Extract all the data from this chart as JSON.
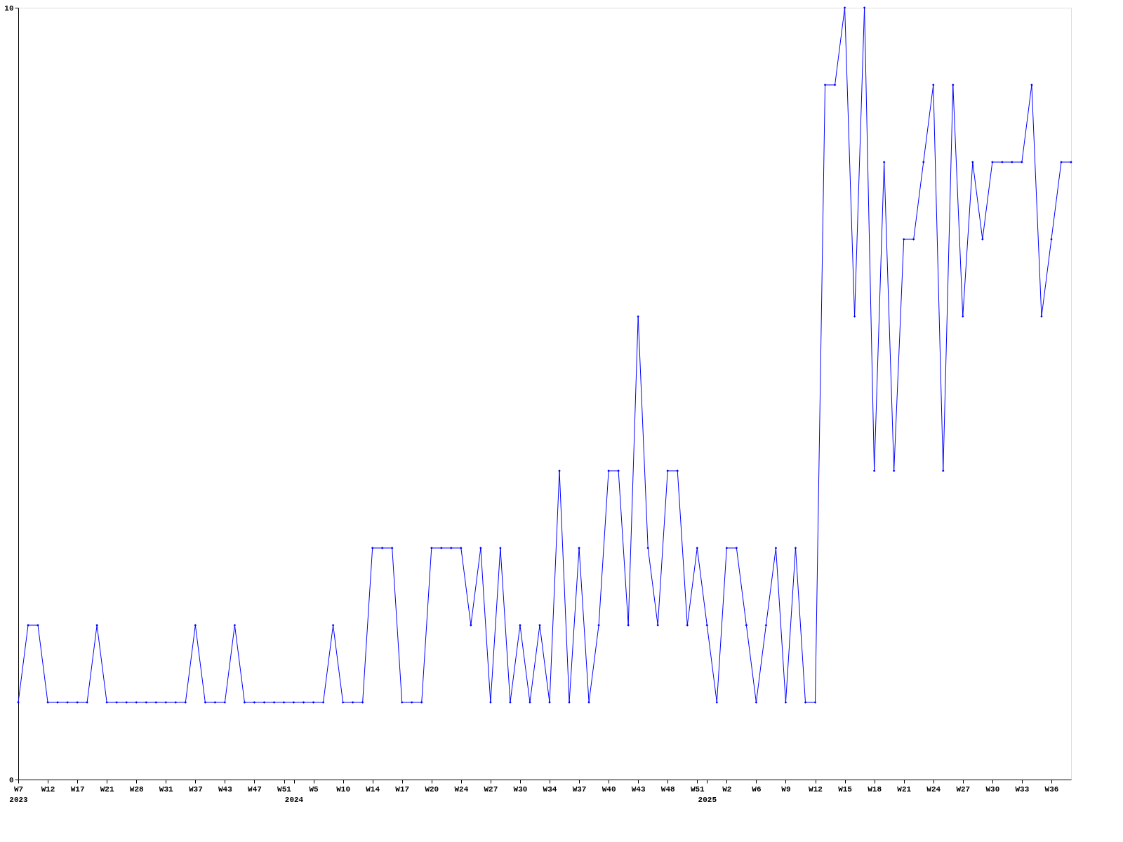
{
  "chart_data": {
    "type": "line",
    "categories": [
      "W7\n2023",
      null,
      null,
      "W12",
      null,
      null,
      "W17",
      null,
      null,
      "W21",
      null,
      null,
      "W28",
      null,
      null,
      "W31",
      null,
      null,
      "W37",
      null,
      null,
      "W43",
      null,
      null,
      "W47",
      null,
      null,
      "W51",
      "\n2024",
      null,
      "W5",
      null,
      null,
      "W10",
      null,
      null,
      "W14",
      null,
      null,
      "W17",
      null,
      null,
      "W20",
      null,
      null,
      "W24",
      null,
      null,
      "W27",
      null,
      null,
      "W30",
      null,
      null,
      "W34",
      null,
      null,
      "W37",
      null,
      null,
      "W40",
      null,
      null,
      "W43",
      null,
      null,
      "W48",
      null,
      null,
      "W51",
      "\n2025",
      null,
      "W2",
      null,
      null,
      "W6",
      null,
      null,
      "W9",
      null,
      null,
      "W12",
      null,
      null,
      "W15",
      null,
      null,
      "W18",
      null,
      null,
      "W21",
      null,
      null,
      "W24",
      null,
      null,
      "W27",
      null,
      null,
      "W30",
      null,
      null,
      "W33",
      null,
      null,
      "W36",
      null,
      null
    ],
    "series": [
      {
        "color": "#0000ff",
        "values": [
          1,
          2,
          2,
          1,
          1,
          1,
          1,
          1,
          2,
          1,
          1,
          1,
          1,
          1,
          1,
          1,
          1,
          1,
          2,
          1,
          1,
          1,
          2,
          1,
          1,
          1,
          1,
          1,
          1,
          1,
          1,
          1,
          2,
          1,
          1,
          1,
          3,
          3,
          3,
          1,
          1,
          1,
          3,
          3,
          3,
          3,
          2,
          3,
          1,
          3,
          1,
          2,
          1,
          2,
          1,
          4,
          1,
          3,
          1,
          2,
          4,
          4,
          2,
          6,
          3,
          2,
          4,
          4,
          2,
          3,
          2,
          1,
          3,
          3,
          2,
          1,
          2,
          3,
          1,
          3,
          1,
          1,
          9,
          9,
          10,
          6,
          10,
          4,
          8,
          4,
          7,
          7,
          8,
          9,
          4,
          9,
          6,
          8,
          7,
          8,
          8,
          8,
          8,
          9,
          6,
          7,
          8,
          8
        ]
      }
    ],
    "ylim": [
      0,
      10
    ],
    "yticks": [
      0,
      10
    ],
    "grid": false,
    "marker": "diamond",
    "line_style": "solid"
  }
}
